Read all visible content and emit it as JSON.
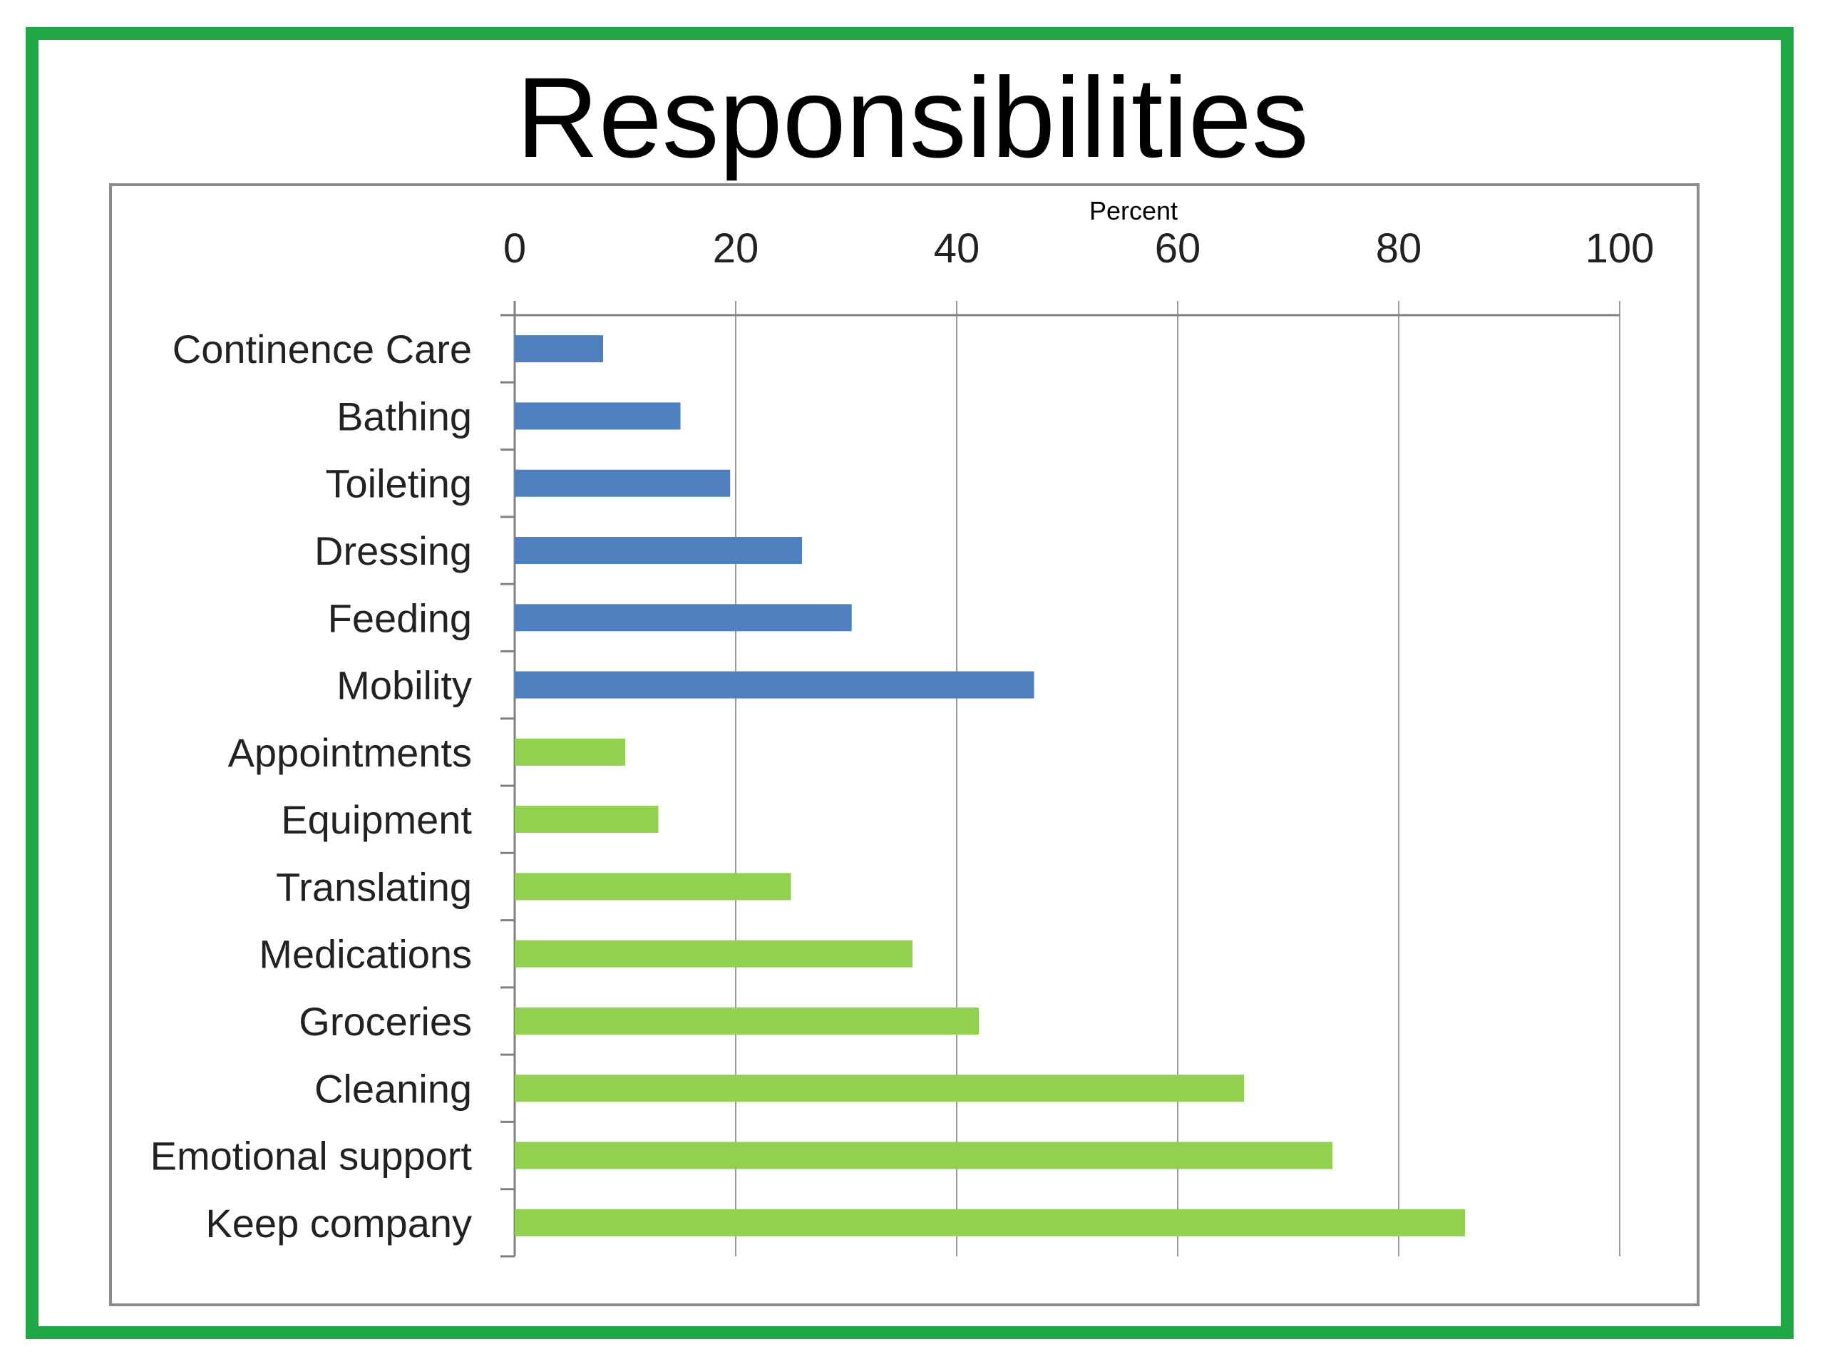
{
  "slide": {
    "title": "Responsibilities",
    "frame_color": "#1fa845"
  },
  "chart_data": {
    "type": "bar",
    "orientation": "horizontal",
    "title": "Responsibilities",
    "xlabel": "Percent",
    "ylabel": "",
    "xlim": [
      0,
      100
    ],
    "x_ticks": [
      0,
      20,
      40,
      60,
      80,
      100
    ],
    "grid": true,
    "axis_position": "top",
    "categories": [
      "Continence Care",
      "Bathing",
      "Toileting",
      "Dressing",
      "Feeding",
      "Mobility",
      "Appointments",
      "Equipment",
      "Translating",
      "Medications",
      "Groceries",
      "Cleaning",
      "Emotional support",
      "Keep company"
    ],
    "values": [
      8,
      15,
      19.5,
      26,
      30.5,
      47,
      10,
      13,
      25,
      36,
      42,
      66,
      74,
      86
    ],
    "colors": [
      "#4f7fbf",
      "#4f7fbf",
      "#4f7fbf",
      "#4f7fbf",
      "#4f7fbf",
      "#4f7fbf",
      "#92d050",
      "#92d050",
      "#92d050",
      "#92d050",
      "#92d050",
      "#92d050",
      "#92d050",
      "#92d050"
    ],
    "gridline_color": "#9a9a9a",
    "axis_color": "#808080"
  }
}
